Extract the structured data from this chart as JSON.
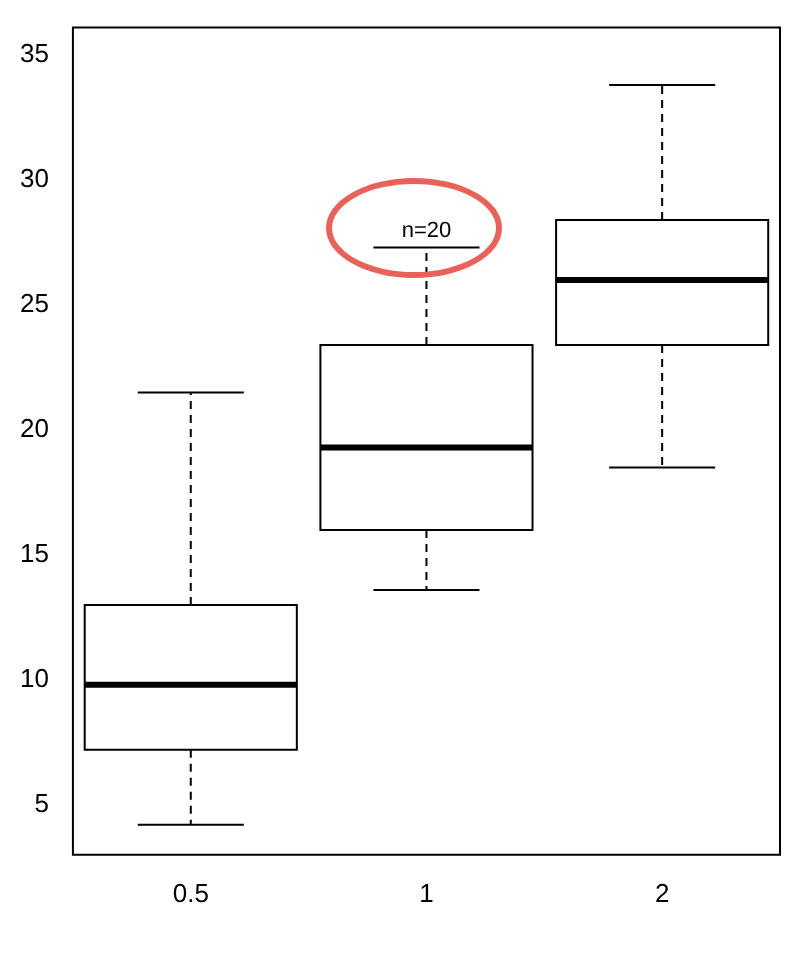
{
  "chart_data": {
    "type": "box",
    "categories": [
      "0.5",
      "1",
      "2"
    ],
    "boxes": [
      {
        "low": 4.2,
        "q1": 7.2,
        "median": 9.8,
        "q3": 13.0,
        "high": 21.5
      },
      {
        "low": 13.6,
        "q1": 16.0,
        "median": 19.3,
        "q3": 23.4,
        "high": 27.3
      },
      {
        "low": 18.5,
        "q1": 23.4,
        "median": 26.0,
        "q3": 28.4,
        "high": 33.8
      }
    ],
    "color": "#000000",
    "ylim": [
      3,
      36.1
    ],
    "yticks": [
      5,
      10,
      15,
      20,
      25,
      30,
      35
    ],
    "grid": false,
    "legend": false,
    "annotations": [
      {
        "text": "n=20",
        "x": "1",
        "y": 27.3
      }
    ]
  }
}
